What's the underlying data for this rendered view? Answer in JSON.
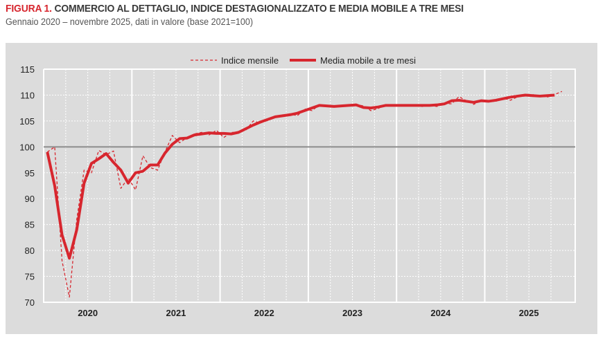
{
  "header": {
    "label": "FIGURA 1.",
    "title": "COMMERCIO AL DETTAGLIO, INDICE DESTAGIONALIZZATO E MEDIA MOBILE A TRE MESI",
    "subtitle": "Gennaio 2020 – novembre 2025, dati in valore (base 2021=100)"
  },
  "chart_data": {
    "type": "line",
    "title": "COMMERCIO AL DETTAGLIO, INDICE DESTAGIONALIZZATO E MEDIA MOBILE A TRE MESI",
    "ylim": [
      70,
      115
    ],
    "yticks": [
      70,
      75,
      80,
      85,
      90,
      95,
      100,
      105,
      110,
      115
    ],
    "xtick_labels": [
      "2020",
      "2021",
      "2022",
      "2023",
      "2024",
      "2025"
    ],
    "x_start": "2020-01",
    "reference_line": 100,
    "grid": true,
    "legend": "top",
    "colors": {
      "series": "#d7262e",
      "reference": "#8c8c8c",
      "panel": "#dcdcdc"
    },
    "series": [
      {
        "name": "Indice mensile",
        "style": "dashed",
        "values": [
          99,
          100,
          78,
          71,
          86,
          95.5,
          95,
          99.3,
          98.5,
          99.2,
          92,
          94,
          91.7,
          98.3,
          96,
          95.5,
          99,
          102.2,
          100.8,
          101.8,
          102.5,
          102.8,
          102.3,
          103.2,
          101.8,
          102.8,
          102.8,
          103.2,
          105,
          104.6,
          105.2,
          105.8,
          106,
          106.4,
          106,
          107.3,
          107,
          108.1,
          107.8,
          107.8,
          107.9,
          108,
          108.2,
          107.9,
          107,
          107.4,
          108.2,
          107.9,
          108,
          108,
          108,
          107.8,
          108,
          107.8,
          108.4,
          108.3,
          109.7,
          108.9,
          108.2,
          109,
          108.7,
          108.8,
          109.4,
          109,
          109.7,
          109.8,
          110.1,
          109.8,
          109.6,
          110.1,
          110.7
        ]
      },
      {
        "name": "Media mobile a tre mesi",
        "style": "solid",
        "values": [
          99,
          92.5,
          83,
          78.5,
          84,
          93,
          96.8,
          97.7,
          98.7,
          97,
          95.5,
          93,
          95,
          95.3,
          96.5,
          96.5,
          98.8,
          100.5,
          101.6,
          101.7,
          102.3,
          102.5,
          102.7,
          102.6,
          102.6,
          102.5,
          102.8,
          103.5,
          104.2,
          104.8,
          105.3,
          105.8,
          106,
          106.2,
          106.5,
          107,
          107.5,
          108,
          107.9,
          107.8,
          107.9,
          108,
          108.1,
          107.6,
          107.5,
          107.7,
          108,
          108,
          108,
          108,
          108,
          108,
          108,
          108.1,
          108.3,
          108.9,
          109,
          108.8,
          108.6,
          108.9,
          108.8,
          109,
          109.3,
          109.6,
          109.8,
          110,
          109.9,
          109.8,
          109.9,
          110
        ]
      }
    ]
  }
}
